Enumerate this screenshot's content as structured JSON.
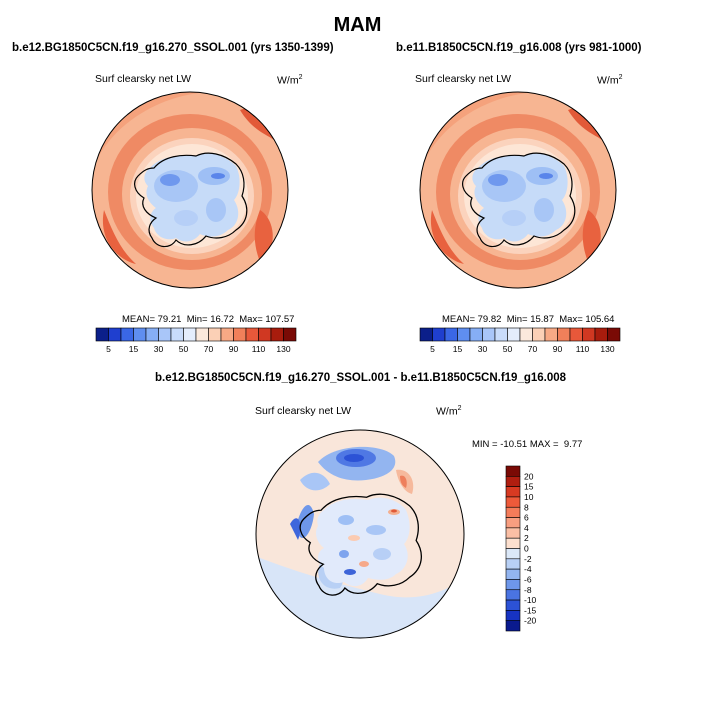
{
  "figure": {
    "season_title": "MAM"
  },
  "panels": {
    "left": {
      "title": "b.e12.BG1850C5CN.f19_g16.270_SSOL.001 (yrs 1350-1399)",
      "variable": "Surf clearsky net LW",
      "unit_base": "W/m",
      "unit_exp": "2",
      "mean_label": "MEAN=",
      "mean_value": "79.21",
      "min_label": "Min=",
      "min_value": "16.72",
      "max_label": "Max=",
      "max_value": "107.57"
    },
    "right": {
      "title": "b.e11.B1850C5CN.f19_g16.008 (yrs 981-1000)",
      "variable": "Surf clearsky net LW",
      "unit_base": "W/m",
      "unit_exp": "2",
      "mean_label": "MEAN=",
      "mean_value": "79.82",
      "min_label": "Min=",
      "min_value": "15.87",
      "max_label": "Max=",
      "max_value": "105.64"
    },
    "diff": {
      "title": "b.e12.BG1850C5CN.f19_g16.270_SSOL.001 - b.e11.B1850C5CN.f19_g16.008",
      "variable": "Surf clearsky net LW",
      "unit_base": "W/m",
      "unit_exp": "2",
      "min_label": "MIN =",
      "min_value": "-10.51",
      "max_label": "MAX =",
      "max_value": "9.77"
    }
  },
  "chart_data": [
    {
      "type": "heatmap",
      "projection": "south-polar-stereographic",
      "title": "b.e12.BG1850C5CN.f19_g16.270_SSOL.001 (yrs 1350-1399)",
      "variable": "Surf clearsky net LW",
      "units": "W/m2",
      "stats": {
        "mean": 79.21,
        "min": 16.72,
        "max": 107.57
      },
      "colorbar": {
        "orientation": "horizontal",
        "levels": [
          5,
          10,
          15,
          20,
          30,
          40,
          50,
          60,
          70,
          80,
          90,
          100,
          110,
          120,
          130
        ],
        "tick_labels": [
          "5",
          "15",
          "30",
          "50",
          "70",
          "90",
          "110",
          "130"
        ],
        "colors": [
          "#0b1f8a",
          "#1f3fcf",
          "#3a67e6",
          "#5f8ef0",
          "#86aef5",
          "#a9c6f9",
          "#c9dcfb",
          "#e4edfc",
          "#fbe9dc",
          "#fbd0b6",
          "#f7a985",
          "#f1805a",
          "#e8583a",
          "#d03822",
          "#a81c0d",
          "#7a0a05"
        ]
      }
    },
    {
      "type": "heatmap",
      "projection": "south-polar-stereographic",
      "title": "b.e11.B1850C5CN.f19_g16.008 (yrs 981-1000)",
      "variable": "Surf clearsky net LW",
      "units": "W/m2",
      "stats": {
        "mean": 79.82,
        "min": 15.87,
        "max": 105.64
      },
      "colorbar": {
        "orientation": "horizontal",
        "levels": [
          5,
          10,
          15,
          20,
          30,
          40,
          50,
          60,
          70,
          80,
          90,
          100,
          110,
          120,
          130
        ],
        "tick_labels": [
          "5",
          "15",
          "30",
          "50",
          "70",
          "90",
          "110",
          "130"
        ],
        "colors": [
          "#0b1f8a",
          "#1f3fcf",
          "#3a67e6",
          "#5f8ef0",
          "#86aef5",
          "#a9c6f9",
          "#c9dcfb",
          "#e4edfc",
          "#fbe9dc",
          "#fbd0b6",
          "#f7a985",
          "#f1805a",
          "#e8583a",
          "#d03822",
          "#a81c0d",
          "#7a0a05"
        ]
      }
    },
    {
      "type": "heatmap",
      "projection": "south-polar-stereographic",
      "title": "b.e12.BG1850C5CN.f19_g16.270_SSOL.001 - b.e11.B1850C5CN.f19_g16.008",
      "variable": "Surf clearsky net LW",
      "units": "W/m2",
      "stats": {
        "min": -10.51,
        "max": 9.77
      },
      "colorbar": {
        "orientation": "vertical",
        "levels": [
          -20,
          -15,
          -10,
          -8,
          -6,
          -4,
          -2,
          0,
          2,
          4,
          6,
          8,
          10,
          15,
          20
        ],
        "tick_labels": [
          "20",
          "15",
          "10",
          "8",
          "6",
          "4",
          "2",
          "0",
          "-2",
          "-4",
          "-6",
          "-8",
          "-10",
          "-15",
          "-20"
        ],
        "colors": [
          "#7a0a05",
          "#b01e10",
          "#d83a22",
          "#ee5a3a",
          "#f47c5a",
          "#f89e80",
          "#fbbfa5",
          "#fde0cf",
          "#dbe8f8",
          "#b8d0f5",
          "#93b5f0",
          "#6e97ea",
          "#4a74e2",
          "#2c52d6",
          "#1733c2",
          "#0a1a8e"
        ]
      }
    }
  ]
}
